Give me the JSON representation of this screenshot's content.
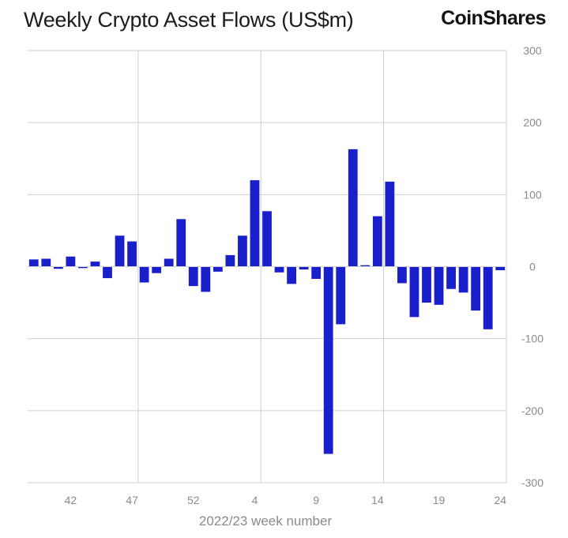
{
  "header": {
    "title": "Weekly Crypto Asset Flows (US$m)",
    "brand": "CoinShares"
  },
  "chart_data": {
    "type": "bar",
    "title": "Weekly Crypto Asset Flows (US$m)",
    "xlabel": "2022/23 week number",
    "ylabel": "",
    "ylim": [
      -300,
      300
    ],
    "y_ticks": [
      300,
      200,
      100,
      0,
      -100,
      -200,
      -300
    ],
    "y_tick_labels": [
      "300",
      "200",
      "100",
      "0",
      "-100",
      "-200",
      "-300"
    ],
    "y_axis_side": "right",
    "grid": true,
    "bar_color": "#1a1fcc",
    "x_tick_labels": [
      {
        "label": "42",
        "week_index": 3
      },
      {
        "label": "47",
        "week_index": 8
      },
      {
        "label": "52",
        "week_index": 13
      },
      {
        "label": "4",
        "week_index": 18
      },
      {
        "label": "9",
        "week_index": 23
      },
      {
        "label": "14",
        "week_index": 28
      },
      {
        "label": "19",
        "week_index": 33
      },
      {
        "label": "24",
        "week_index": 38
      }
    ],
    "vertical_gridlines_after_week_index": [
      8.5,
      18.5,
      28.5
    ],
    "values": [
      10,
      11,
      -3,
      14,
      -2,
      7,
      -16,
      43,
      35,
      -22,
      -9,
      11,
      66,
      -27,
      -35,
      -7,
      16,
      43,
      120,
      77,
      -8,
      -24,
      -4,
      -17,
      -260,
      -80,
      163,
      2,
      70,
      118,
      -23,
      -70,
      -50,
      -53,
      -31,
      -36,
      -61,
      -87,
      -5
    ]
  }
}
